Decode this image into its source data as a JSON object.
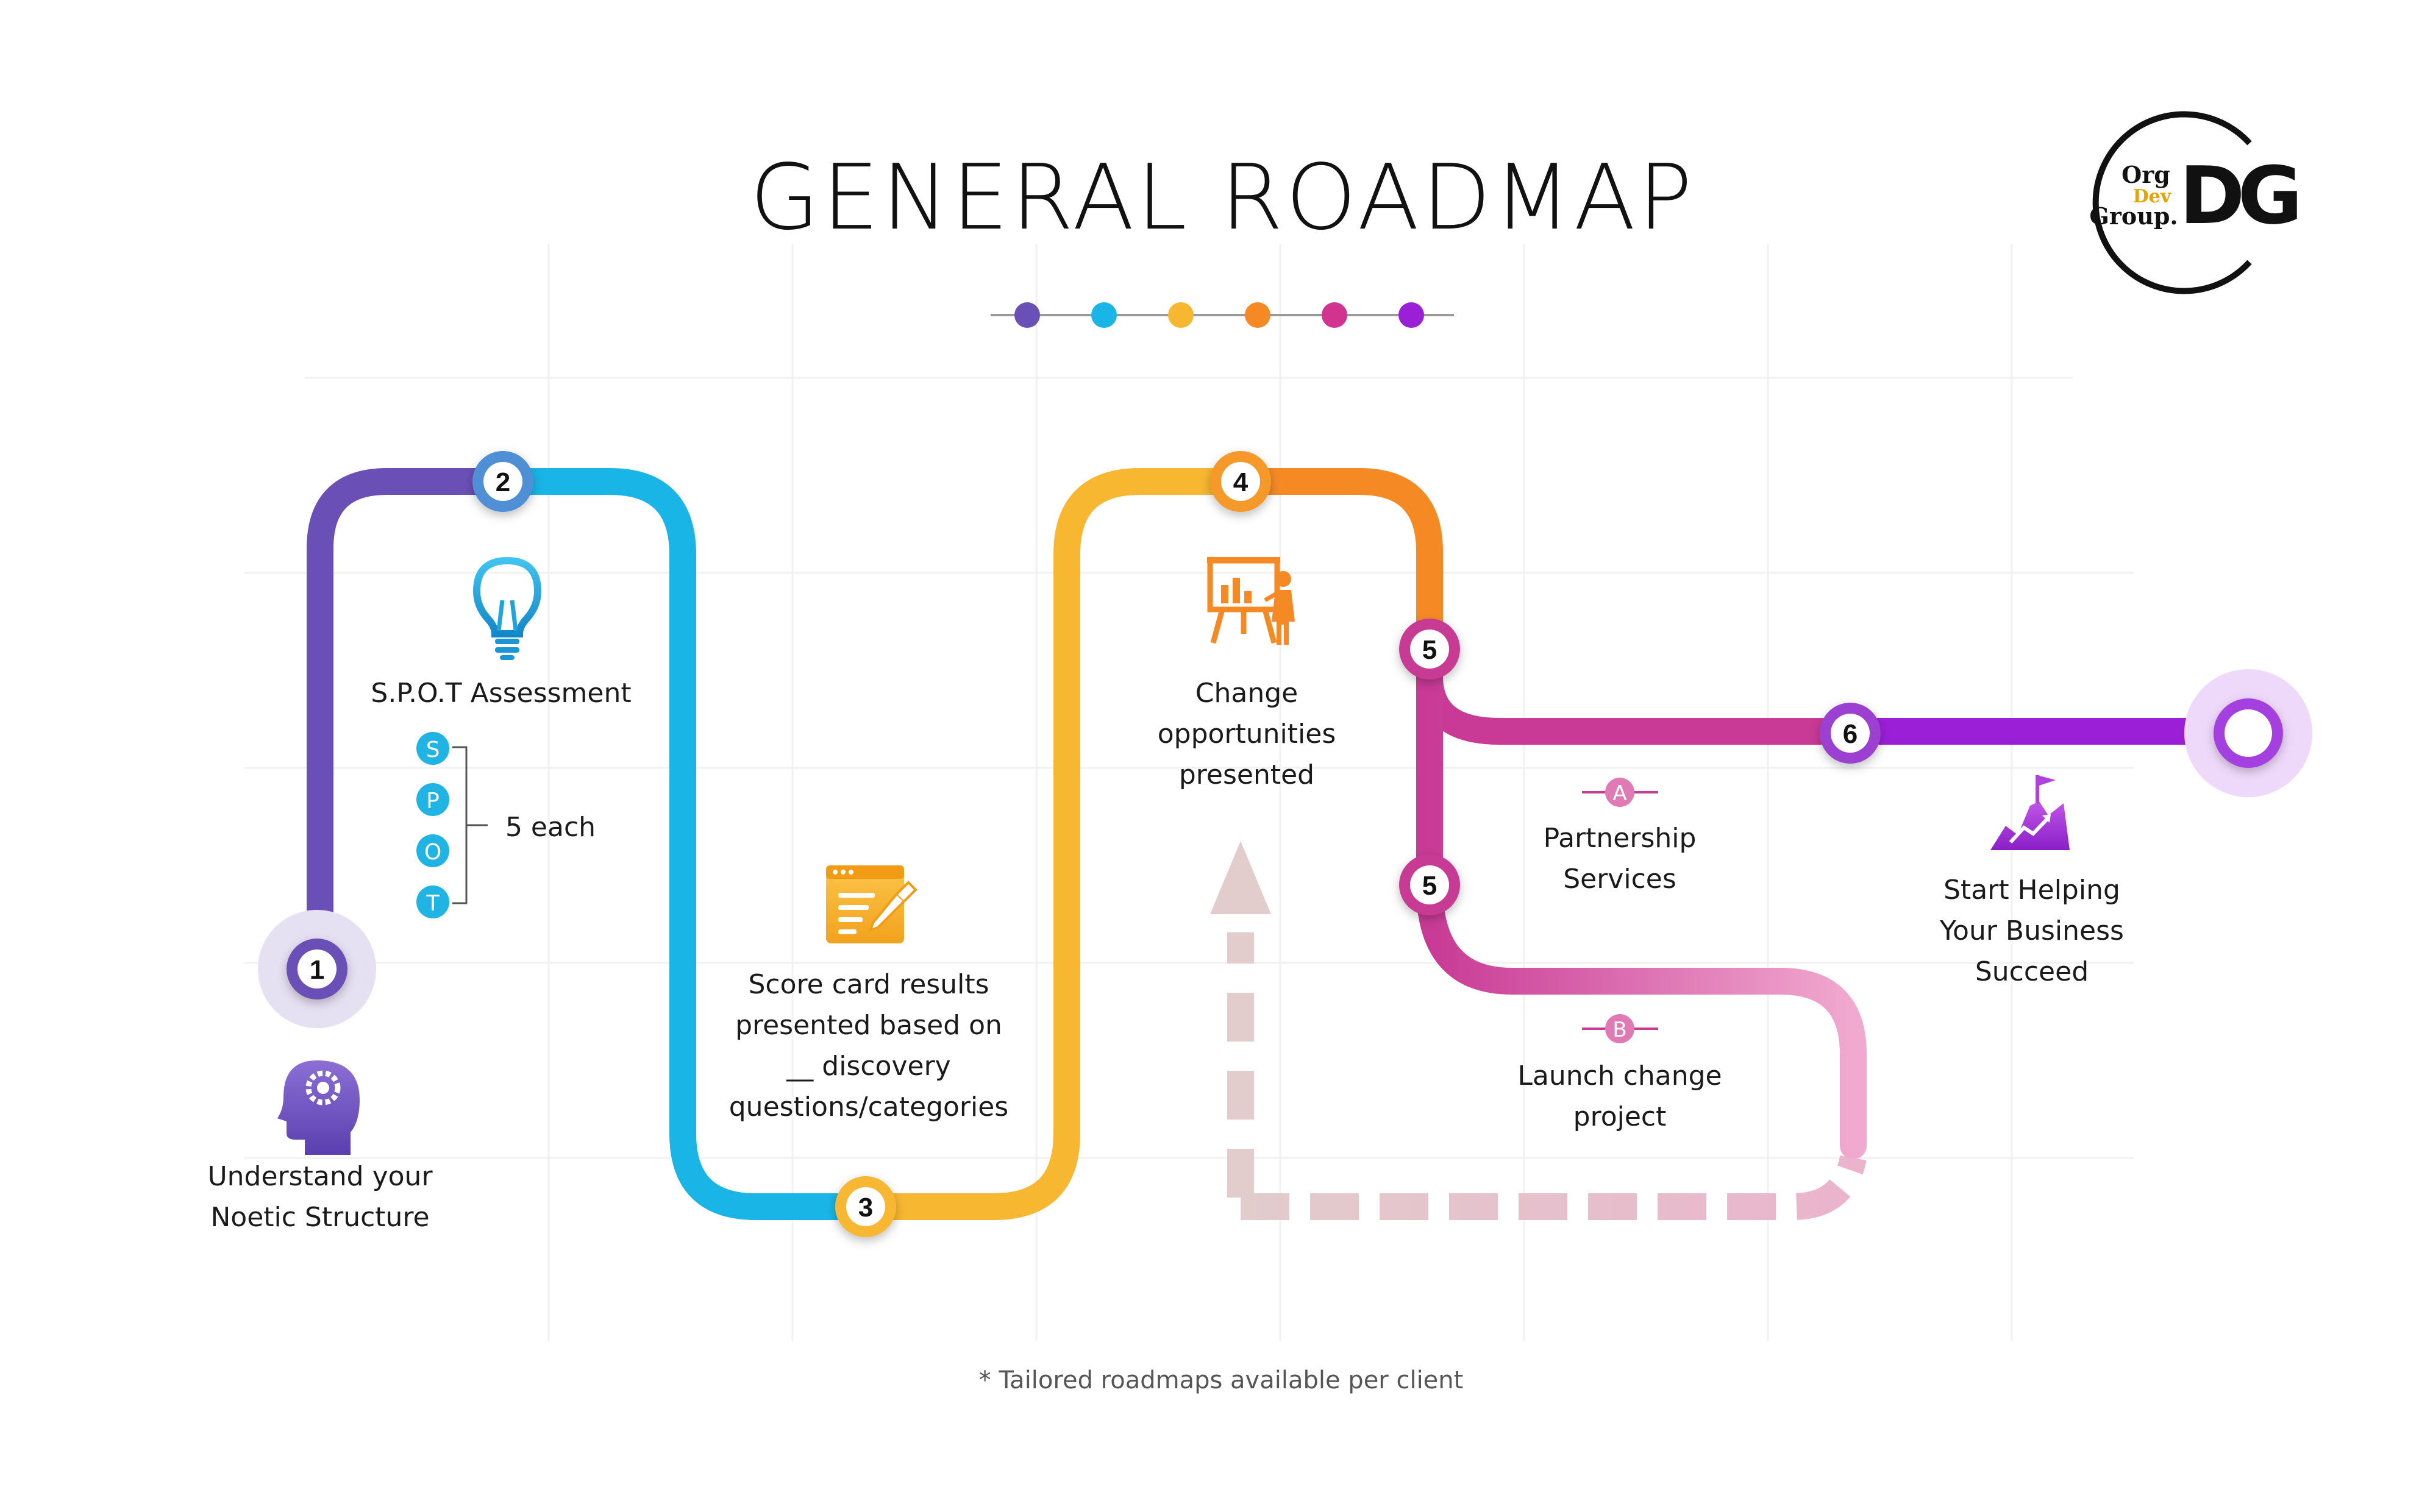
{
  "title": "GENERAL ROADMAP",
  "logo": {
    "line1": "Org",
    "line2": "Dev",
    "line3": "Group.",
    "mark": "DG",
    "accent_color": "#e8a300"
  },
  "legend_dots": [
    "#6a4fb6",
    "#19b5e6",
    "#f7b731",
    "#f58a25",
    "#d2338f",
    "#9b1fd6"
  ],
  "steps": {
    "s1": {
      "badge": "1",
      "label_line1": "Understand your",
      "label_line2": "Noetic Structure",
      "icon": "head-gear-icon"
    },
    "s2": {
      "badge": "2",
      "label": "S.P.O.T Assessment",
      "icon": "lightbulb-icon",
      "letters": [
        "S",
        "P",
        "O",
        "T"
      ],
      "letters_note": "5 each"
    },
    "s3": {
      "badge": "3",
      "label_line1": "Score card results",
      "label_line2": "presented based on",
      "label_line3": "__ discovery",
      "label_line4": "questions/categories",
      "icon": "document-pen-icon"
    },
    "s4": {
      "badge": "4",
      "label_line1": "Change",
      "label_line2": "opportunities",
      "label_line3": "presented",
      "icon": "presentation-icon"
    },
    "s5a": {
      "badge": "5",
      "marker": "A",
      "label_line1": "Partnership",
      "label_line2": "Services"
    },
    "s5b": {
      "badge": "5",
      "marker": "B",
      "label_line1": "Launch change",
      "label_line2": "project"
    },
    "s6": {
      "badge": "6",
      "label_line1": "Start Helping",
      "label_line2": "Your Business",
      "label_line3": "Succeed",
      "icon": "mountain-flag-icon"
    }
  },
  "footnote": "* Tailored roadmaps available per client",
  "colors": {
    "purple": "#6a4fb6",
    "cyan": "#19b5e6",
    "yellow": "#f7b731",
    "orange": "#f58a25",
    "magenta": "#c83a95",
    "violet": "#9b1fd6",
    "pink_light": "#f1a9cf",
    "dashed": "#e6c4c8"
  }
}
